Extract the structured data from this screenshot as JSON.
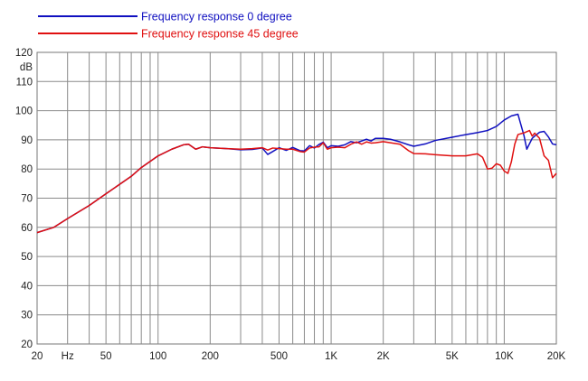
{
  "chart_data": {
    "type": "line",
    "title": "",
    "xlabel": "",
    "ylabel": "dB",
    "x_scale": "log",
    "xlim": [
      20,
      20000
    ],
    "ylim": [
      20,
      120
    ],
    "grid": true,
    "legend_position": "top-left",
    "y_ticks": [
      20,
      30,
      40,
      50,
      60,
      70,
      80,
      90,
      100,
      110,
      120
    ],
    "y_tick_labels": [
      "20",
      "30",
      "40",
      "50",
      "60",
      "70",
      "80",
      "90",
      "100",
      "110",
      "120"
    ],
    "x_ticks": [
      20,
      30,
      50,
      100,
      200,
      500,
      1000,
      2000,
      5000,
      10000,
      20000
    ],
    "x_tick_labels": [
      "20",
      "Hz",
      "50",
      "100",
      "200",
      "500",
      "1K",
      "2K",
      "5K",
      "10K",
      "20K"
    ],
    "series": [
      {
        "name": "Frequency response 0 degree",
        "color": "#1010c0",
        "points": [
          [
            20,
            58.2
          ],
          [
            25,
            60
          ],
          [
            30,
            63
          ],
          [
            40,
            67.5
          ],
          [
            50,
            71.5
          ],
          [
            70,
            77.5
          ],
          [
            80,
            80.5
          ],
          [
            100,
            84.5
          ],
          [
            120,
            86.8
          ],
          [
            140,
            88.3
          ],
          [
            150,
            88.5
          ],
          [
            165,
            86.8
          ],
          [
            180,
            87.6
          ],
          [
            200,
            87.3
          ],
          [
            250,
            87
          ],
          [
            300,
            86.6
          ],
          [
            350,
            86.7
          ],
          [
            400,
            87.2
          ],
          [
            430,
            85
          ],
          [
            460,
            86
          ],
          [
            500,
            87.3
          ],
          [
            550,
            86.4
          ],
          [
            600,
            87.4
          ],
          [
            660,
            86.3
          ],
          [
            700,
            86.2
          ],
          [
            750,
            88
          ],
          [
            800,
            87.2
          ],
          [
            850,
            88.4
          ],
          [
            900,
            89.2
          ],
          [
            950,
            87.3
          ],
          [
            1000,
            88
          ],
          [
            1100,
            87.8
          ],
          [
            1200,
            88.3
          ],
          [
            1300,
            89.4
          ],
          [
            1400,
            89
          ],
          [
            1500,
            89.6
          ],
          [
            1600,
            90.2
          ],
          [
            1700,
            89.6
          ],
          [
            1800,
            90.5
          ],
          [
            2000,
            90.5
          ],
          [
            2200,
            90.2
          ],
          [
            2500,
            89.3
          ],
          [
            2800,
            88.3
          ],
          [
            3000,
            87.8
          ],
          [
            3500,
            88.6
          ],
          [
            4000,
            89.8
          ],
          [
            5000,
            90.9
          ],
          [
            6000,
            91.8
          ],
          [
            7000,
            92.5
          ],
          [
            8000,
            93.2
          ],
          [
            9000,
            94.6
          ],
          [
            10000,
            96.8
          ],
          [
            11000,
            98.2
          ],
          [
            12000,
            98.8
          ],
          [
            13000,
            91.5
          ],
          [
            13500,
            86.8
          ],
          [
            14500,
            90.5
          ],
          [
            15000,
            91.3
          ],
          [
            16000,
            92.6
          ],
          [
            17000,
            92.9
          ],
          [
            18000,
            91
          ],
          [
            19000,
            88.6
          ],
          [
            20000,
            88.3
          ]
        ]
      },
      {
        "name": "Frequency response 45 degree",
        "color": "#e01010",
        "points": [
          [
            20,
            58.2
          ],
          [
            25,
            60
          ],
          [
            30,
            63
          ],
          [
            40,
            67.5
          ],
          [
            50,
            71.5
          ],
          [
            70,
            77.5
          ],
          [
            80,
            80.5
          ],
          [
            100,
            84.5
          ],
          [
            120,
            86.8
          ],
          [
            140,
            88.3
          ],
          [
            150,
            88.5
          ],
          [
            165,
            86.8
          ],
          [
            180,
            87.6
          ],
          [
            200,
            87.3
          ],
          [
            250,
            87
          ],
          [
            300,
            86.8
          ],
          [
            350,
            87
          ],
          [
            400,
            87.3
          ],
          [
            430,
            86.5
          ],
          [
            460,
            87.2
          ],
          [
            500,
            87
          ],
          [
            550,
            86.8
          ],
          [
            600,
            86.8
          ],
          [
            660,
            86
          ],
          [
            700,
            85.8
          ],
          [
            750,
            87.2
          ],
          [
            800,
            87.5
          ],
          [
            850,
            87.6
          ],
          [
            900,
            89
          ],
          [
            950,
            86.8
          ],
          [
            1000,
            87.3
          ],
          [
            1100,
            87.5
          ],
          [
            1200,
            87.3
          ],
          [
            1300,
            88.5
          ],
          [
            1400,
            89.3
          ],
          [
            1500,
            88.5
          ],
          [
            1600,
            89.3
          ],
          [
            1700,
            88.9
          ],
          [
            1800,
            89
          ],
          [
            2000,
            89.4
          ],
          [
            2200,
            89
          ],
          [
            2500,
            88.5
          ],
          [
            2800,
            86.3
          ],
          [
            3000,
            85.3
          ],
          [
            3500,
            85.2
          ],
          [
            4000,
            84.9
          ],
          [
            5000,
            84.5
          ],
          [
            6000,
            84.5
          ],
          [
            7000,
            85.2
          ],
          [
            7500,
            84
          ],
          [
            8000,
            80
          ],
          [
            8500,
            80.3
          ],
          [
            9000,
            81.8
          ],
          [
            9500,
            81.3
          ],
          [
            10000,
            79.3
          ],
          [
            10500,
            78.5
          ],
          [
            11000,
            82.5
          ],
          [
            11500,
            88.5
          ],
          [
            12000,
            91.8
          ],
          [
            13000,
            92.4
          ],
          [
            14000,
            93.2
          ],
          [
            14500,
            91.3
          ],
          [
            15000,
            92.3
          ],
          [
            16000,
            90.5
          ],
          [
            17000,
            84.5
          ],
          [
            18000,
            83
          ],
          [
            19000,
            77
          ],
          [
            20000,
            78.5
          ]
        ]
      }
    ]
  }
}
